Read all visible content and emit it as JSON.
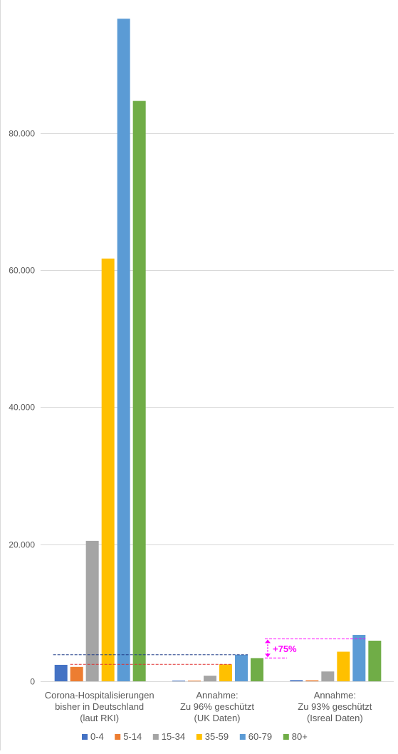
{
  "chart_data": {
    "type": "bar",
    "title": "",
    "xlabel": "",
    "ylabel": "",
    "ylim": [
      0,
      96000
    ],
    "yticks": [
      0,
      20000,
      40000,
      60000,
      80000
    ],
    "ytick_labels": [
      "0",
      "20.000",
      "40.000",
      "60.000",
      "80.000"
    ],
    "grid": true,
    "legend_position": "bottom",
    "categories": [
      [
        "Corona-Hospitalisierungen",
        "bisher in Deutschland",
        "(laut RKI)"
      ],
      [
        "Annahme:",
        "Zu 96% geschützt",
        "(UK Daten)"
      ],
      [
        "Annahme:",
        "Zu 93% geschützt",
        "(Isreal Daten)"
      ]
    ],
    "series": [
      {
        "name": "0-4",
        "color": "#4472c4",
        "values": [
          2400,
          96,
          168
        ]
      },
      {
        "name": "5-14",
        "color": "#ed7d31",
        "values": [
          2100,
          84,
          147
        ]
      },
      {
        "name": "15-34",
        "color": "#a5a5a5",
        "values": [
          20500,
          820,
          1435
        ]
      },
      {
        "name": "35-59",
        "color": "#ffc000",
        "values": [
          61700,
          2468,
          4319
        ]
      },
      {
        "name": "60-79",
        "color": "#5b9bd5",
        "values": [
          96700,
          3868,
          6769
        ]
      },
      {
        "name": "80+",
        "color": "#70ad47",
        "values": [
          84700,
          3388,
          5929
        ]
      }
    ],
    "annotations": [
      {
        "text": "+75%",
        "color": "#ff00ff"
      }
    ],
    "reference_lines": [
      {
        "value": 3868,
        "color": "#1f3c88",
        "style": "dashed"
      },
      {
        "value": 2468,
        "color": "#e03030",
        "style": "dashed"
      },
      {
        "value": 6200,
        "color": "#ff00ff",
        "style": "dashed"
      },
      {
        "value": 3400,
        "color": "#ff00ff",
        "style": "dashed"
      }
    ]
  }
}
